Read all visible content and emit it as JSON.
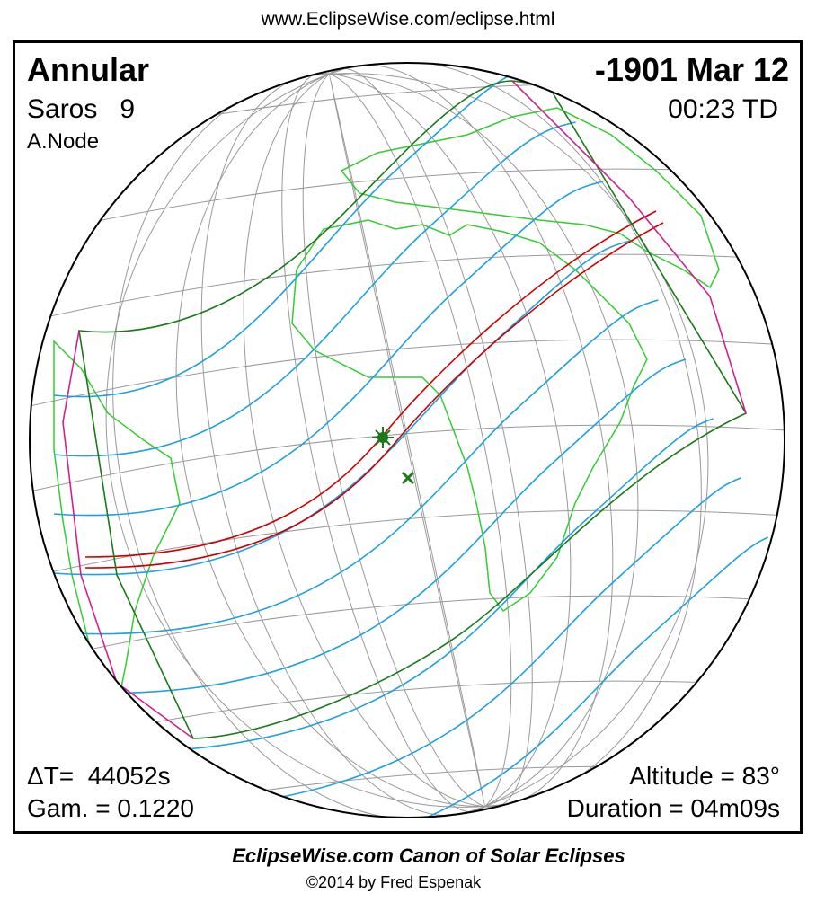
{
  "header": {
    "url": "www.EclipseWise.com/eclipse.html"
  },
  "eclipse": {
    "type": "Annular",
    "date": "-1901 Mar 12",
    "saros": "Saros   9",
    "node": "A.Node",
    "time": "00:23 TD",
    "delta_t": "ΔT=  44052s",
    "gamma": "Gam. = 0.1220",
    "altitude": "Altitude = 83°",
    "duration": "Duration = 04m09s"
  },
  "footer": {
    "title": "EclipseWise.com Canon of Solar Eclipses",
    "copyright": "©2014 by Fred Espenak"
  }
}
